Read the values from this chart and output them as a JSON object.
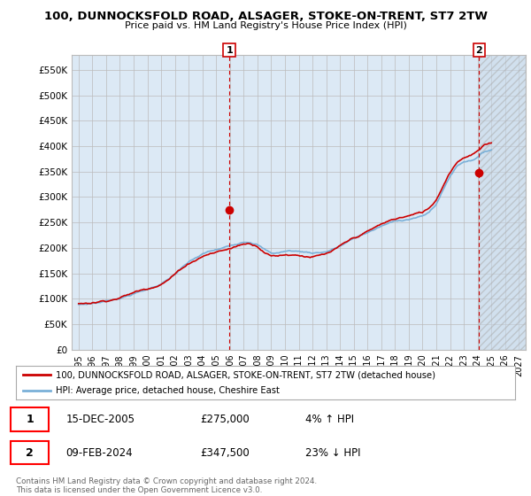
{
  "title": "100, DUNNOCKSFOLD ROAD, ALSAGER, STOKE-ON-TRENT, ST7 2TW",
  "subtitle": "Price paid vs. HM Land Registry's House Price Index (HPI)",
  "ylim": [
    0,
    580000
  ],
  "yticks": [
    0,
    50000,
    100000,
    150000,
    200000,
    250000,
    300000,
    350000,
    400000,
    450000,
    500000,
    550000
  ],
  "ytick_labels": [
    "£0",
    "£50K",
    "£100K",
    "£150K",
    "£200K",
    "£250K",
    "£300K",
    "£350K",
    "£400K",
    "£450K",
    "£500K",
    "£550K"
  ],
  "xlim_start": 1994.5,
  "xlim_end": 2027.5,
  "xticks": [
    1995,
    1996,
    1997,
    1998,
    1999,
    2000,
    2001,
    2002,
    2003,
    2004,
    2005,
    2006,
    2007,
    2008,
    2009,
    2010,
    2011,
    2012,
    2013,
    2014,
    2015,
    2016,
    2017,
    2018,
    2019,
    2020,
    2021,
    2022,
    2023,
    2024,
    2025,
    2026,
    2027
  ],
  "background_color": "#ffffff",
  "chart_bg_color": "#dce9f5",
  "grid_color": "#bbbbbb",
  "hpi_color": "#7ab0d8",
  "price_color": "#cc0000",
  "marker_color": "#cc0000",
  "sale1": {
    "year": 2005.96,
    "price": 275000,
    "label": "1",
    "date": "15-DEC-2005",
    "hpi_pct": "4%",
    "hpi_dir": "↑"
  },
  "sale2": {
    "year": 2024.12,
    "price": 347500,
    "label": "2",
    "date": "09-FEB-2024",
    "hpi_pct": "23%",
    "hpi_dir": "↓"
  },
  "legend_line1": "100, DUNNOCKSFOLD ROAD, ALSAGER, STOKE-ON-TRENT, ST7 2TW (detached house)",
  "legend_line2": "HPI: Average price, detached house, Cheshire East",
  "footnote": "Contains HM Land Registry data © Crown copyright and database right 2024.\nThis data is licensed under the Open Government Licence v3.0.",
  "hatch_xstart": 2024.12,
  "hatch_xend": 2027.5
}
